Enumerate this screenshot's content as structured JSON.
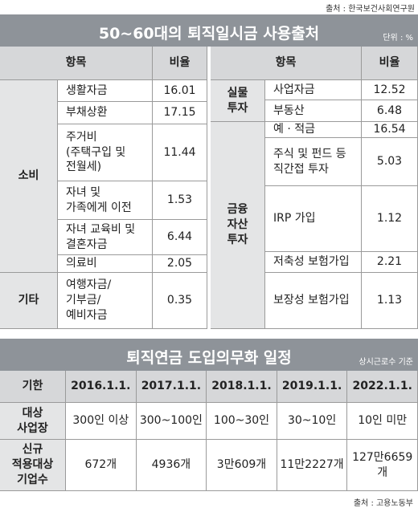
{
  "source_top": "출처 : 한국보건사회연구원",
  "table1": {
    "title": "50~60대의 퇴직일시금 사용출처",
    "unit": "단위 : %",
    "headers": [
      "항목",
      "비율"
    ],
    "groups": [
      {
        "label": "소비",
        "items": [
          {
            "name": "생활자금",
            "value": 16.01
          },
          {
            "name": "부채상환",
            "value": 17.15
          },
          {
            "name": "주거비\n(주택구입 및\n전월세)",
            "value": 11.44
          },
          {
            "name": "자녀 및\n가족에게 이전",
            "value": 1.53
          },
          {
            "name": "자녀 교육비 및\n결혼자금",
            "value": 6.44
          },
          {
            "name": "의료비",
            "value": 2.05
          }
        ]
      },
      {
        "label": "기타",
        "items": [
          {
            "name": "여행자금/\n기부금/\n예비자금",
            "value": 0.35
          }
        ]
      },
      {
        "label": "실물\n투자",
        "items": [
          {
            "name": "사업자금",
            "value": 12.52
          },
          {
            "name": "부동산",
            "value": 6.48
          }
        ]
      },
      {
        "label": "금융\n자산\n투자",
        "items": [
          {
            "name": "예 · 적금",
            "value": 16.54
          },
          {
            "name": "주식 및 펀드 등\n직간접 투자",
            "value": 5.03
          },
          {
            "name": "IRP 가입",
            "value": 1.12
          },
          {
            "name": "저축성 보험가입",
            "value": 2.21
          },
          {
            "name": "보장성 보험가입",
            "value": 1.13
          }
        ]
      }
    ]
  },
  "table2": {
    "title": "퇴직연금 도입의무화 일정",
    "note": "상시근로수 기준",
    "header": [
      "기한",
      "2016.1.1.",
      "2017.1.1.",
      "2018.1.1.",
      "2019.1.1.",
      "2022.1.1."
    ],
    "rows": [
      [
        "대상\n사업장",
        "300인 이상",
        "300~100인",
        "100~30인",
        "30~10인",
        "10인 미만"
      ],
      [
        "신규\n적용대상\n기업수",
        "672개",
        "4936개",
        "3만609개",
        "11만2227개",
        "127만6659개"
      ]
    ]
  },
  "source_bottom": "출처 : 고용노동부"
}
